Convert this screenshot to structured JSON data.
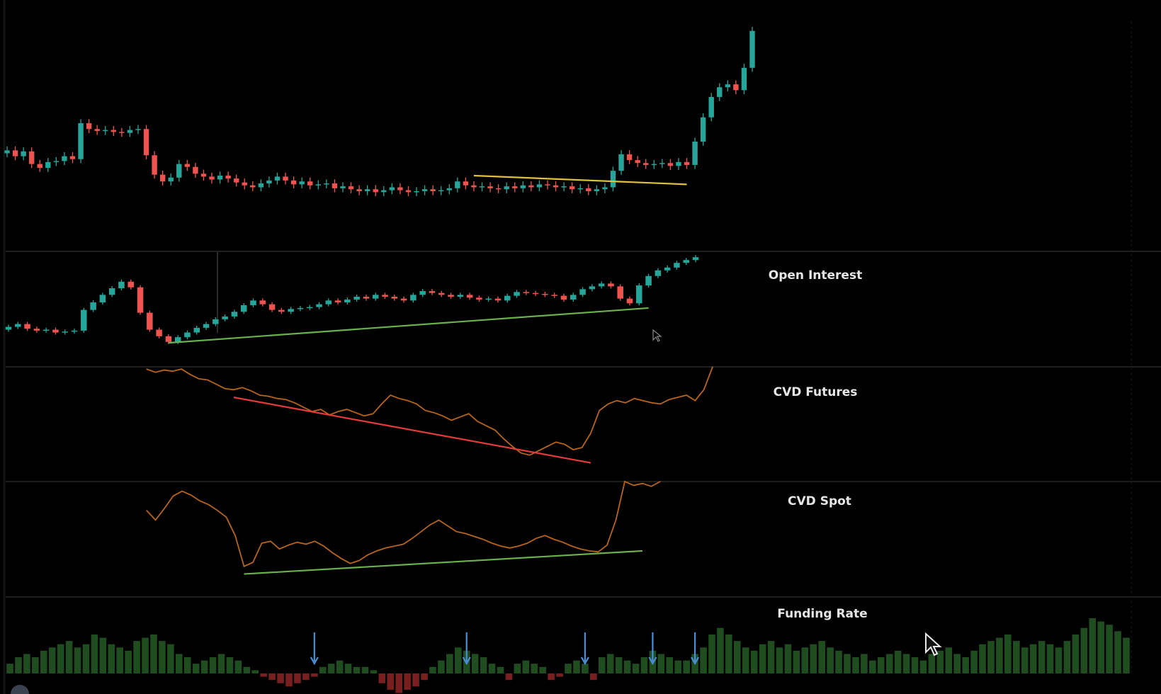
{
  "chart_data": {
    "type": "multi-panel",
    "colors": {
      "background": "#000000",
      "up_candle": "#26a69a",
      "down_candle": "#ef5350",
      "cvd_line": "#b8641a",
      "trend_yellow": "#e0c23a",
      "trend_green": "#6ab04c",
      "trend_red": "#e23b3b",
      "funding_positive": "#1f4d20",
      "funding_negative": "#7a1f1f",
      "arrow_blue": "#4a8fd6",
      "divider": "#1e1e1e"
    },
    "panels": [
      {
        "id": "price",
        "label": "",
        "type": "candlestick",
        "closes": [
          100,
          99.4,
          99.9,
          98.6,
          98.2,
          98.8,
          98.9,
          99.4,
          99.1,
          102.8,
          102.2,
          102.0,
          102.1,
          101.9,
          101.8,
          102.1,
          102.2,
          99.5,
          97.5,
          96.8,
          97.2,
          98.6,
          98.3,
          97.6,
          97.3,
          97.0,
          97.4,
          97.1,
          96.7,
          96.4,
          96.2,
          96.6,
          96.9,
          97.3,
          96.9,
          96.5,
          96.8,
          96.4,
          96.5,
          96.6,
          96.1,
          96.3,
          96.0,
          95.8,
          96.0,
          95.7,
          95.9,
          96.2,
          95.9,
          95.7,
          95.8,
          96.0,
          95.8,
          95.9,
          96.1,
          96.8,
          96.4,
          96.2,
          96.3,
          96.1,
          96.0,
          96.3,
          96.1,
          96.4,
          96.2,
          96.5,
          96.4,
          96.2,
          96.3,
          96.0,
          96.1,
          95.8,
          96.0,
          96.2,
          97.9,
          99.6,
          99.0,
          98.7,
          98.5,
          98.6,
          98.7,
          98.4,
          98.8,
          98.5,
          100.9,
          103.4,
          105.5,
          106.5,
          106.8,
          106.2,
          108.5,
          112.3
        ],
        "trendline": {
          "color": "yellow",
          "from_index": 57,
          "to_index": 83,
          "from_value": 97.4,
          "to_value": 96.5
        }
      },
      {
        "id": "open_interest",
        "label": "Open Interest",
        "type": "candlestick",
        "closes": [
          100,
          100.3,
          99.8,
          99.6,
          99.7,
          99.4,
          99.5,
          99.6,
          101.8,
          102.6,
          103.4,
          104.1,
          104.8,
          104.2,
          101.5,
          99.7,
          99.0,
          98.4,
          98.9,
          99.4,
          99.9,
          100.3,
          100.8,
          101.1,
          101.6,
          102.3,
          102.8,
          102.4,
          101.8,
          101.6,
          101.9,
          102.0,
          102.1,
          102.4,
          102.8,
          102.6,
          102.9,
          103.2,
          103.0,
          103.4,
          103.2,
          103.0,
          102.8,
          103.4,
          103.8,
          103.6,
          103.4,
          103.2,
          103.4,
          103.1,
          102.9,
          103.0,
          102.8,
          103.3,
          103.7,
          103.6,
          103.5,
          103.4,
          103.3,
          102.9,
          103.4,
          104.0,
          104.3,
          104.6,
          104.3,
          103.0,
          102.5,
          104.4,
          105.4,
          106.0,
          106.3,
          106.8,
          107.1,
          107.4
        ],
        "trendline": {
          "color": "green",
          "from_index": 17,
          "to_index": 68,
          "from_value": 98.3,
          "to_value": 102.0
        }
      },
      {
        "id": "cvd_futures",
        "label": "CVD Futures",
        "type": "line",
        "values": [
          98,
          95,
          97,
          96,
          98,
          93,
          89,
          88,
          84,
          80,
          79,
          81,
          78,
          74,
          73,
          71,
          70,
          67,
          63,
          59,
          61,
          56,
          59,
          61,
          58,
          55,
          57,
          66,
          74,
          71,
          69,
          66,
          60,
          58,
          55,
          51,
          54,
          57,
          50,
          46,
          42,
          34,
          27,
          21,
          19,
          23,
          27,
          31,
          29,
          24,
          26,
          39,
          60,
          66,
          69,
          67,
          71,
          69,
          67,
          66,
          70,
          72,
          74,
          69,
          79,
          100
        ],
        "trendline": {
          "color": "red",
          "from_index": 10,
          "to_index": 51,
          "from_value": 72,
          "to_value": 12
        }
      },
      {
        "id": "cvd_spot",
        "label": "CVD Spot",
        "type": "line",
        "values": [
          70,
          60,
          72,
          85,
          90,
          86,
          80,
          76,
          70,
          63,
          44,
          12,
          16,
          36,
          38,
          30,
          34,
          37,
          35,
          38,
          33,
          26,
          20,
          15,
          18,
          24,
          28,
          31,
          33,
          35,
          41,
          48,
          55,
          60,
          54,
          48,
          46,
          43,
          40,
          36,
          33,
          31,
          33,
          36,
          41,
          44,
          40,
          37,
          33,
          30,
          28,
          27,
          34,
          60,
          100,
          96,
          98,
          95,
          100
        ],
        "trendline": {
          "color": "green",
          "from_index": 11,
          "to_index": 56,
          "from_value": 4,
          "to_value": 28
        }
      },
      {
        "id": "funding_rate",
        "label": "Funding Rate",
        "type": "histogram",
        "values": [
          3,
          5,
          6,
          5,
          7,
          8,
          9,
          10,
          8,
          9,
          12,
          11,
          9,
          8,
          7,
          10,
          11,
          12,
          10,
          9,
          6,
          5,
          3,
          4,
          5,
          6,
          5,
          4,
          2,
          1,
          -1,
          -2,
          -3,
          -4,
          -3,
          -2,
          -1,
          2,
          3,
          4,
          3,
          2,
          2,
          1,
          -3,
          -5,
          -6,
          -5,
          -4,
          -2,
          2,
          4,
          6,
          8,
          7,
          6,
          5,
          3,
          2,
          -2,
          3,
          4,
          3,
          2,
          -2,
          -1,
          3,
          4,
          3,
          -2,
          5,
          6,
          5,
          4,
          3,
          5,
          7,
          6,
          5,
          4,
          4,
          6,
          8,
          12,
          14,
          12,
          10,
          8,
          7,
          9,
          10,
          8,
          9,
          7,
          8,
          9,
          10,
          8,
          7,
          6,
          5,
          6,
          4,
          5,
          6,
          7,
          6,
          5,
          4,
          6,
          7,
          8,
          6,
          5,
          7,
          9,
          10,
          11,
          12,
          10,
          8,
          9,
          10,
          9,
          8,
          10,
          12,
          14,
          17,
          16,
          15,
          13,
          11
        ],
        "arrows_at_index": [
          36,
          54,
          68,
          76,
          81
        ]
      }
    ]
  }
}
